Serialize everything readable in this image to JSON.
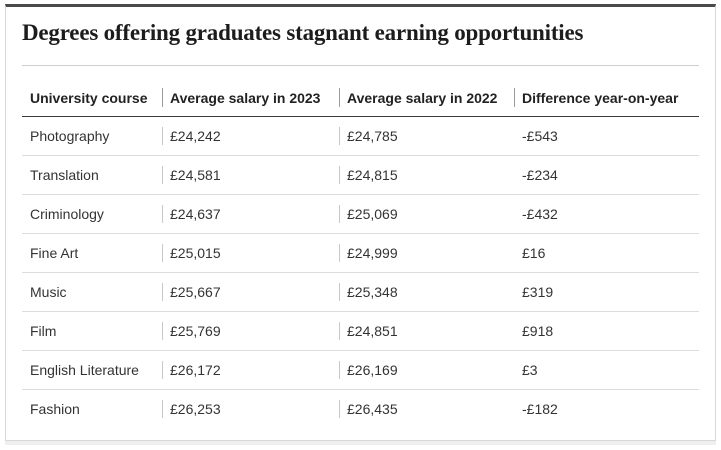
{
  "chart_data": {
    "type": "table",
    "title": "Degrees offering graduates stagnant earning opportunities",
    "columns": [
      "University course",
      "Average salary in 2023",
      "Average salary in 2022",
      "Difference year-on-year"
    ],
    "rows": [
      [
        "Photography",
        "£24,242",
        "£24,785",
        "-£543"
      ],
      [
        "Translation",
        "£24,581",
        "£24,815",
        "-£234"
      ],
      [
        "Criminology",
        "£24,637",
        "£25,069",
        "-£432"
      ],
      [
        "Fine Art",
        "£25,015",
        "£24,999",
        "£16"
      ],
      [
        "Music",
        "£25,667",
        "£25,348",
        "£319"
      ],
      [
        "Film",
        "£25,769",
        "£24,851",
        "£918"
      ],
      [
        "English Literature",
        "£26,172",
        "£26,169",
        "£3"
      ],
      [
        "Fashion",
        "£26,253",
        "£26,435",
        "-£182"
      ]
    ]
  }
}
